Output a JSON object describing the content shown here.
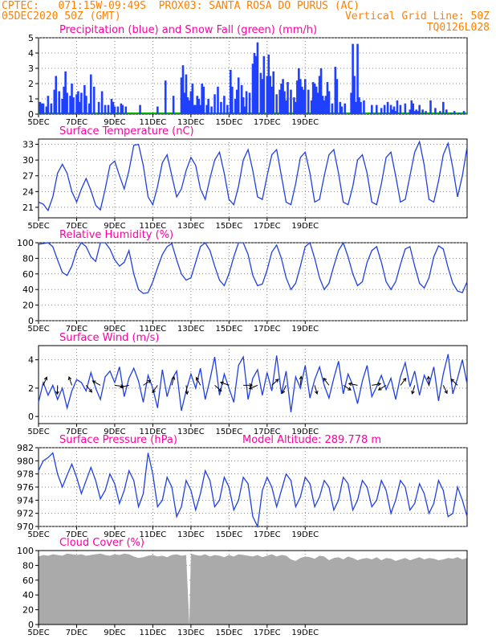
{
  "header": {
    "line1_left": "CPTEC:   071:15W-09:49S  PROX03: SANTA ROSA DO PURUS (AC)",
    "line2_left": "05DEC2020 50Z (GMT)",
    "line2_right": "Vertical Grid Line: 50Z",
    "line3_right": "TQ0126L028"
  },
  "colors": {
    "header": "#ff8000",
    "title": "#ff00a0",
    "line": "#2040e0",
    "precip": "#2040ff",
    "snow": "#00b000",
    "cloud": "#aaaaaa",
    "grid": "#888888"
  },
  "chart_data": [
    {
      "type": "bar",
      "title": "Precipitation (blue) and Snow Fall (green) (mm/h)",
      "ylim": [
        0,
        5
      ],
      "yticks": [
        "0",
        "1",
        "2",
        "3",
        "4",
        "5"
      ],
      "xticks": [
        "5DEC",
        "7DEC",
        "9DEC",
        "11DEC",
        "13DEC",
        "15DEC",
        "17DEC",
        "19DEC"
      ],
      "x_hours": [
        2,
        4,
        6,
        10,
        12,
        16,
        20,
        22,
        26,
        30,
        32,
        34,
        36,
        40,
        42,
        44,
        48,
        50,
        52,
        54,
        58,
        60,
        64,
        66,
        70,
        76,
        80,
        84,
        88,
        92,
        94,
        96,
        100,
        104,
        106,
        110,
        128,
        150,
        160,
        170,
        180,
        182,
        184,
        186,
        188,
        190,
        192,
        194,
        196,
        198,
        200,
        202,
        204,
        206,
        208,
        212,
        214,
        218,
        222,
        226,
        230,
        234,
        238,
        242,
        244,
        248,
        250,
        252,
        256,
        258,
        260,
        262,
        266,
        270,
        272,
        274,
        276,
        280,
        282,
        284,
        288,
        290,
        292,
        294,
        296,
        300,
        304,
        306,
        308,
        310,
        312,
        314,
        318,
        322,
        324,
        326,
        328,
        330,
        332,
        334,
        336,
        340,
        344,
        346,
        348,
        350,
        352,
        354,
        356,
        358,
        360,
        362,
        364,
        366,
        370,
        374,
        376,
        380,
        382,
        386,
        394,
        396,
        398,
        400,
        402,
        404,
        406,
        410,
        420,
        426,
        432,
        436,
        440,
        444,
        446,
        448,
        450,
        452,
        456,
        462,
        468,
        470,
        472,
        474,
        476,
        478,
        480,
        484,
        488,
        494,
        500,
        506,
        510,
        514,
        520,
        524,
        530,
        536
      ],
      "values": [
        0.8,
        0.7,
        0.7,
        0.5,
        1.2,
        0.7,
        1.6,
        2.5,
        1.5,
        1.0,
        1.8,
        2.8,
        1.4,
        1.2,
        2.0,
        1.1,
        1.3,
        1.5,
        0.8,
        1.4,
        1.9,
        1.2,
        0.7,
        2.6,
        1.8,
        0.8,
        1.5,
        0.6,
        0.6,
        1.0,
        0.8,
        0.5,
        0.5,
        0.7,
        0.6,
        0.5,
        0.6,
        0.5,
        2.2,
        1.2,
        2.4,
        3.2,
        1.4,
        2.6,
        1.1,
        0.9,
        1.5,
        2.0,
        0.6,
        0.6,
        1.2,
        1.0,
        0.6,
        2.0,
        1.8,
        0.6,
        1.0,
        0.5,
        1.3,
        1.8,
        0.8,
        1.2,
        0.6,
        2.9,
        1.8,
        1.0,
        1.6,
        2.4,
        1.9,
        1.1,
        0.5,
        1.5,
        1.4,
        3.3,
        4.0,
        3.8,
        4.7,
        2.7,
        2.3,
        3.8,
        2.5,
        3.9,
        2.5,
        1.8,
        2.8,
        1.3,
        1.6,
        2.0,
        2.3,
        1.5,
        0.9,
        2.1,
        1.6,
        1.1,
        0.8,
        2.2,
        3.0,
        2.3,
        1.8,
        1.6,
        2.3,
        1.6,
        0.9,
        2.1,
        2.0,
        1.8,
        1.4,
        2.5,
        3.0,
        1.2,
        0.9,
        1.2,
        2.1,
        1.5,
        0.7,
        3.1,
        2.3,
        0.8,
        0.5,
        0.7,
        1.4,
        4.6,
        2.5,
        0.8,
        4.6,
        1.1,
        0.8,
        0.9,
        0.6,
        0.6,
        0.4,
        0.6,
        0.8,
        0.6,
        0.3,
        0.5,
        0.2,
        0.9,
        0.6,
        0.7,
        0.3,
        0.9,
        0.7,
        0.2,
        0.3,
        0.2,
        0.6,
        0.3,
        0.2,
        0.9,
        0.4,
        0.2,
        0.8,
        0.3,
        0.1,
        0.2,
        0.1,
        0.2
      ]
    },
    {
      "type": "line",
      "title": "Surface Temperature (nC)",
      "ylim": [
        19,
        34
      ],
      "yticks": [
        "21",
        "24",
        "27",
        "30",
        "33"
      ],
      "xticks": [
        "5DEC",
        "7DEC",
        "9DEC",
        "11DEC",
        "13DEC",
        "15DEC",
        "17DEC",
        "19DEC"
      ],
      "x_hours": [
        0,
        6,
        12,
        18,
        24,
        30,
        36,
        42,
        48,
        54,
        60,
        66,
        72,
        78,
        84,
        90,
        96,
        102,
        108,
        114,
        120,
        126,
        132,
        138,
        144,
        150,
        156,
        162,
        168,
        174,
        180,
        186,
        192,
        198,
        204,
        210,
        216,
        222,
        228,
        234,
        240,
        246,
        252,
        258,
        264,
        270,
        276,
        282,
        288,
        294,
        300,
        306,
        312,
        318,
        324,
        330,
        336,
        342,
        348,
        354,
        360,
        366,
        372,
        378,
        384,
        390,
        396,
        402,
        408,
        414,
        420,
        426,
        432,
        438,
        444,
        450,
        456,
        462,
        468,
        474,
        480,
        486,
        492,
        498,
        504,
        510,
        516,
        522,
        528,
        534,
        540
      ],
      "values": [
        22.0,
        21.6,
        20.4,
        23.0,
        27.5,
        29.2,
        27.5,
        24.0,
        22.0,
        24.5,
        26.5,
        24.2,
        21.4,
        20.5,
        24.5,
        29.0,
        29.8,
        27.0,
        24.5,
        28.0,
        32.8,
        33.0,
        29.0,
        23.0,
        21.5,
        25.0,
        29.5,
        31.0,
        27.0,
        23.0,
        24.5,
        28.0,
        30.5,
        29.0,
        24.5,
        22.5,
        26.5,
        30.0,
        31.5,
        27.5,
        22.5,
        21.5,
        25.0,
        30.0,
        32.0,
        28.0,
        23.0,
        22.5,
        27.0,
        31.0,
        32.0,
        27.0,
        22.0,
        21.5,
        25.5,
        30.5,
        31.5,
        27.5,
        22.0,
        22.5,
        27.0,
        31.0,
        32.0,
        27.5,
        22.0,
        21.5,
        25.0,
        30.0,
        31.0,
        27.5,
        22.0,
        21.5,
        25.5,
        30.5,
        31.5,
        27.0,
        22.0,
        22.5,
        27.0,
        31.5,
        33.5,
        29.0,
        22.5,
        22.0,
        26.0,
        31.0,
        33.2,
        28.5,
        23.0,
        27.0,
        32.5
      ]
    },
    {
      "type": "line",
      "title": "Relative Humidity (%)",
      "ylim": [
        0,
        100
      ],
      "yticks": [
        "0",
        "20",
        "40",
        "60",
        "80",
        "100"
      ],
      "xticks": [
        "5DEC",
        "7DEC",
        "9DEC",
        "11DEC",
        "13DEC",
        "15DEC",
        "17DEC",
        "19DEC"
      ],
      "x_hours": [
        0,
        6,
        12,
        18,
        24,
        30,
        36,
        42,
        48,
        54,
        60,
        66,
        72,
        78,
        84,
        90,
        96,
        102,
        108,
        114,
        120,
        126,
        132,
        138,
        144,
        150,
        156,
        162,
        168,
        174,
        180,
        186,
        192,
        198,
        204,
        210,
        216,
        222,
        228,
        234,
        240,
        246,
        252,
        258,
        264,
        270,
        276,
        282,
        288,
        294,
        300,
        306,
        312,
        318,
        324,
        330,
        336,
        342,
        348,
        354,
        360,
        366,
        372,
        378,
        384,
        390,
        396,
        402,
        408,
        414,
        420,
        426,
        432,
        438,
        444,
        450,
        456,
        462,
        468,
        474,
        480,
        486,
        492,
        498,
        504,
        510,
        516,
        522,
        528,
        534,
        540
      ],
      "values": [
        98,
        99,
        100,
        95,
        78,
        62,
        58,
        70,
        90,
        100,
        95,
        82,
        76,
        100,
        100,
        92,
        78,
        70,
        75,
        90,
        60,
        40,
        35,
        36,
        50,
        68,
        85,
        95,
        99,
        78,
        60,
        52,
        55,
        75,
        95,
        100,
        90,
        70,
        52,
        45,
        60,
        82,
        100,
        100,
        85,
        58,
        45,
        47,
        65,
        88,
        97,
        80,
        55,
        40,
        48,
        70,
        95,
        100,
        80,
        55,
        40,
        48,
        70,
        90,
        100,
        82,
        60,
        45,
        50,
        75,
        90,
        95,
        75,
        50,
        40,
        50,
        72,
        92,
        95,
        70,
        48,
        42,
        55,
        82,
        96,
        92,
        68,
        48,
        38,
        36,
        50
      ]
    },
    {
      "type": "line",
      "title": "Surface Wind (m/s)",
      "ylim": [
        -0.5,
        5
      ],
      "yticks": [
        "0",
        "2",
        "4"
      ],
      "xticks": [
        "5DEC",
        "7DEC",
        "9DEC",
        "11DEC",
        "13DEC",
        "15DEC",
        "17DEC",
        "19DEC"
      ],
      "x_hours": [
        0,
        6,
        12,
        18,
        24,
        30,
        36,
        42,
        48,
        54,
        60,
        66,
        72,
        78,
        84,
        90,
        96,
        102,
        108,
        114,
        120,
        126,
        132,
        138,
        144,
        150,
        156,
        162,
        168,
        174,
        180,
        186,
        192,
        198,
        204,
        210,
        216,
        222,
        228,
        234,
        240,
        246,
        252,
        258,
        264,
        270,
        276,
        282,
        288,
        294,
        300,
        306,
        312,
        318,
        324,
        330,
        336,
        342,
        348,
        354,
        360,
        366,
        372,
        378,
        384,
        390,
        396,
        402,
        408,
        414,
        420,
        426,
        432,
        438,
        444,
        450,
        456,
        462,
        468,
        474,
        480,
        486,
        492,
        498,
        504,
        510,
        516,
        522,
        528,
        534,
        540
      ],
      "values": [
        1.0,
        2.4,
        1.5,
        2.2,
        1.2,
        2.0,
        0.6,
        1.8,
        2.6,
        2.4,
        1.8,
        3.1,
        2.0,
        1.2,
        2.8,
        3.2,
        2.4,
        3.5,
        1.4,
        2.7,
        3.4,
        2.5,
        1.0,
        2.9,
        2.0,
        0.6,
        3.3,
        1.4,
        2.6,
        3.2,
        0.4,
        1.8,
        3.0,
        2.0,
        3.4,
        1.2,
        2.6,
        4.2,
        1.5,
        3.0,
        2.0,
        1.0,
        3.6,
        4.2,
        1.2,
        2.7,
        3.3,
        1.5,
        3.1,
        1.8,
        4.3,
        1.6,
        3.2,
        0.3,
        2.8,
        2.0,
        3.6,
        1.3,
        2.6,
        3.5,
        2.2,
        1.3,
        2.7,
        3.9,
        1.6,
        3.0,
        2.2,
        0.9,
        2.5,
        3.6,
        1.4,
        2.1,
        2.9,
        1.9,
        2.7,
        1.2,
        2.8,
        3.8,
        2.1,
        3.2,
        1.5,
        2.9,
        2.2,
        3.5,
        1.1,
        3.0,
        4.4,
        1.6,
        2.7,
        4.0,
        2.3
      ]
    },
    {
      "type": "line",
      "title": "Surface Pressure (hPa)",
      "annotation": "Model Altitude: 289.778 m",
      "ylim": [
        970,
        982
      ],
      "yticks": [
        "970",
        "972",
        "974",
        "976",
        "978",
        "980",
        "982"
      ],
      "xticks": [
        "5DEC",
        "7DEC",
        "9DEC",
        "11DEC",
        "13DEC",
        "15DEC",
        "17DEC",
        "19DEC"
      ],
      "x_hours": [
        0,
        6,
        12,
        18,
        24,
        30,
        36,
        42,
        48,
        54,
        60,
        66,
        72,
        78,
        84,
        90,
        96,
        102,
        108,
        114,
        120,
        126,
        132,
        138,
        144,
        150,
        156,
        162,
        168,
        174,
        180,
        186,
        192,
        198,
        204,
        210,
        216,
        222,
        228,
        234,
        240,
        246,
        252,
        258,
        264,
        270,
        276,
        282,
        288,
        294,
        300,
        306,
        312,
        318,
        324,
        330,
        336,
        342,
        348,
        354,
        360,
        366,
        372,
        378,
        384,
        390,
        396,
        402,
        408,
        414,
        420,
        426,
        432,
        438,
        444,
        450,
        456,
        462,
        468,
        474,
        480,
        486,
        492,
        498,
        504,
        510,
        516,
        522,
        528,
        534,
        540
      ],
      "values": [
        978.5,
        980.0,
        980.5,
        981.2,
        978.0,
        976.0,
        977.8,
        979.5,
        977.5,
        975.0,
        977.0,
        979.0,
        977.0,
        974.2,
        975.5,
        978.0,
        976.5,
        973.5,
        975.5,
        978.5,
        977.0,
        973.0,
        975.0,
        981.2,
        978.0,
        973.0,
        974.0,
        977.5,
        976.0,
        971.5,
        973.0,
        977.0,
        975.5,
        972.5,
        975.0,
        978.5,
        977.0,
        973.0,
        974.0,
        977.5,
        976.0,
        972.5,
        974.0,
        977.5,
        976.5,
        971.5,
        970.0,
        975.5,
        977.5,
        976.0,
        973.0,
        975.5,
        978.0,
        977.0,
        973.0,
        974.5,
        977.5,
        976.5,
        973.0,
        974.5,
        977.0,
        976.0,
        972.5,
        974.0,
        977.5,
        976.5,
        972.5,
        974.0,
        977.0,
        976.0,
        973.0,
        974.0,
        977.0,
        975.5,
        972.0,
        974.0,
        977.0,
        976.0,
        972.5,
        973.5,
        976.5,
        975.0,
        972.0,
        973.5,
        977.0,
        975.5,
        971.5,
        972.0,
        976.0,
        974.0,
        971.5
      ]
    },
    {
      "type": "area",
      "title": "Cloud Cover (%)",
      "ylim": [
        0,
        100
      ],
      "yticks": [
        "0",
        "20",
        "40",
        "60",
        "80",
        "100"
      ],
      "xticks": [
        "5DEC",
        "7DEC",
        "9DEC",
        "11DEC",
        "13DEC",
        "15DEC",
        "17DEC",
        "19DEC"
      ],
      "x_hours": [
        0,
        6,
        12,
        18,
        24,
        30,
        36,
        42,
        48,
        54,
        60,
        66,
        72,
        78,
        84,
        90,
        96,
        102,
        108,
        114,
        120,
        126,
        132,
        138,
        144,
        150,
        156,
        162,
        168,
        174,
        180,
        186,
        190,
        192,
        198,
        204,
        210,
        216,
        222,
        228,
        234,
        240,
        246,
        252,
        258,
        264,
        270,
        276,
        282,
        288,
        294,
        300,
        306,
        312,
        318,
        324,
        330,
        336,
        342,
        348,
        354,
        360,
        366,
        372,
        378,
        384,
        390,
        396,
        402,
        408,
        414,
        420,
        426,
        432,
        438,
        444,
        450,
        456,
        462,
        468,
        474,
        480,
        486,
        492,
        498,
        504,
        510,
        516,
        522,
        528,
        534,
        540
      ],
      "values": [
        92,
        94,
        93,
        95,
        94,
        93,
        96,
        95,
        94,
        95,
        93,
        94,
        95,
        96,
        94,
        93,
        95,
        94,
        96,
        95,
        92,
        90,
        91,
        93,
        94,
        92,
        93,
        91,
        94,
        95,
        93,
        94,
        0,
        96,
        94,
        93,
        95,
        92,
        94,
        93,
        91,
        94,
        92,
        95,
        94,
        93,
        92,
        94,
        91,
        93,
        95,
        92,
        94,
        93,
        88,
        86,
        90,
        92,
        91,
        89,
        93,
        92,
        87,
        90,
        91,
        88,
        92,
        90,
        87,
        89,
        90,
        88,
        91,
        87,
        90,
        89,
        86,
        88,
        90,
        87,
        89,
        91,
        88,
        90,
        89,
        87,
        88,
        90,
        89,
        91,
        88,
        90
      ]
    }
  ]
}
